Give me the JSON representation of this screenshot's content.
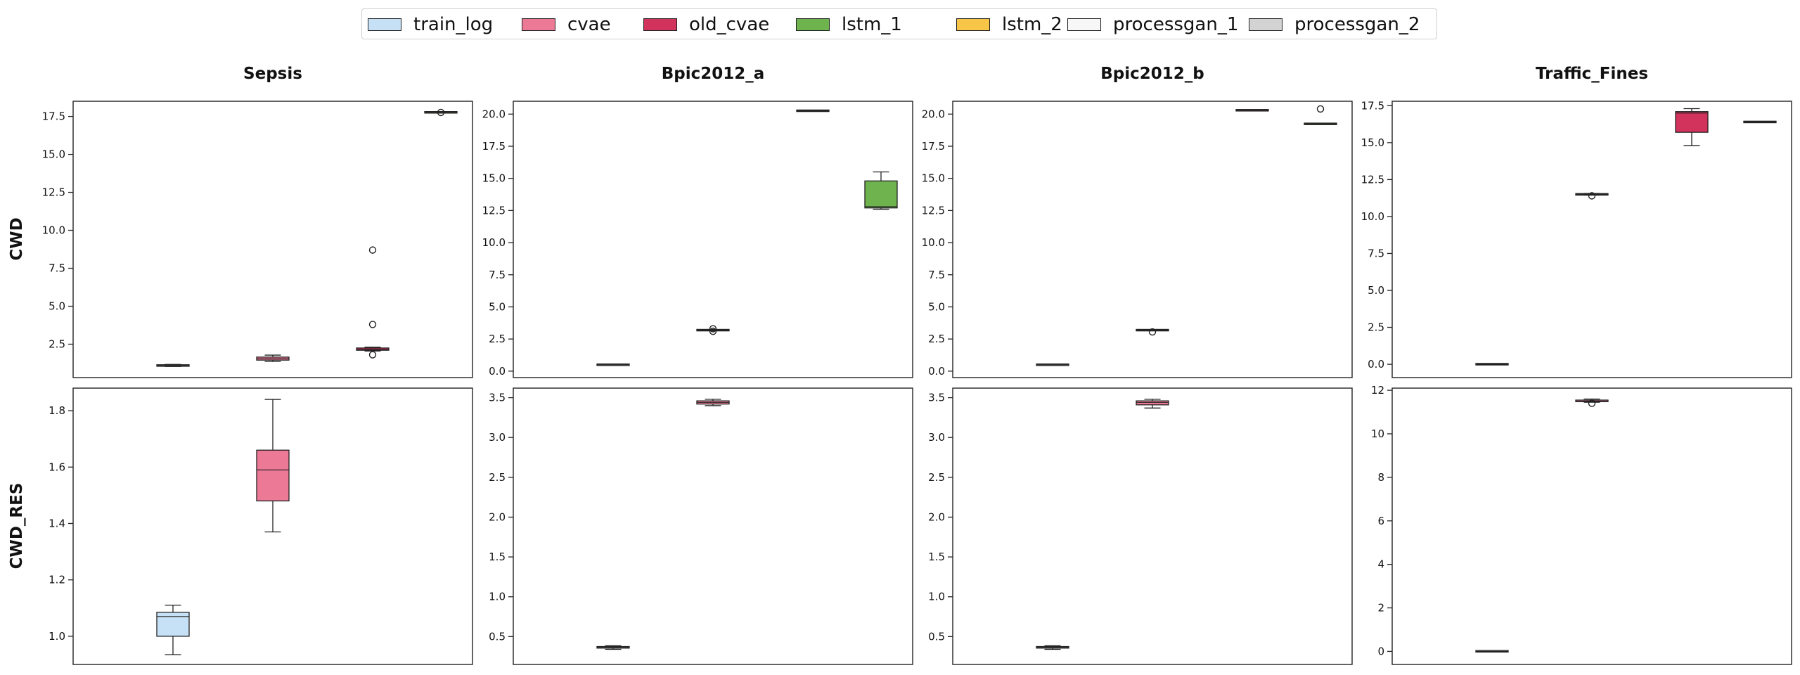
{
  "colors": {
    "train_log": "#c6e0f5",
    "cvae": "#ec7a96",
    "old_cvae": "#d2335c",
    "lstm_1": "#6fb34f",
    "lstm_2": "#f7c548",
    "processgan_1": "#f7f7f7",
    "processgan_2": "#d3d3d3"
  },
  "chart_data": {
    "type": "box",
    "legend": [
      "train_log",
      "cvae",
      "old_cvae",
      "lstm_1",
      "lstm_2",
      "processgan_1",
      "processgan_2"
    ],
    "legend_position": "top-center",
    "columns": [
      "Sepsis",
      "Bpic2012_a",
      "Bpic2012_b",
      "Traffic_Fines"
    ],
    "rows": [
      "CWD",
      "CWD_RES"
    ],
    "panels": [
      {
        "row": "CWD",
        "column": "Sepsis",
        "ylim": [
          0.3,
          18.5
        ],
        "yticks": [
          2.5,
          5.0,
          7.5,
          10.0,
          12.5,
          15.0,
          17.5
        ],
        "ytick_labels": [
          "2.5",
          "5.0",
          "7.5",
          "10.0",
          "12.5",
          "15.0",
          "17.5"
        ],
        "boxes": [
          {
            "series": "train_log",
            "pos": 1,
            "min": 1.03,
            "q1": 1.06,
            "median": 1.09,
            "q3": 1.13,
            "max": 1.17,
            "outliers": []
          },
          {
            "series": "cvae",
            "pos": 2,
            "min": 1.36,
            "q1": 1.45,
            "median": 1.55,
            "q3": 1.65,
            "max": 1.78,
            "outliers": []
          },
          {
            "series": "old_cvae",
            "pos": 3,
            "min": 2.05,
            "q1": 2.1,
            "median": 2.15,
            "q3": 2.25,
            "max": 2.3,
            "outliers": [
              8.7,
              3.8,
              1.8
            ]
          },
          {
            "series": "lstm_1",
            "pos": 4,
            "min": 17.75,
            "q1": 17.76,
            "median": 17.77,
            "q3": 17.78,
            "max": 17.79,
            "outliers": [
              17.76
            ]
          }
        ]
      },
      {
        "row": "CWD",
        "column": "Bpic2012_a",
        "ylim": [
          -0.5,
          21.0
        ],
        "yticks": [
          0.0,
          2.5,
          5.0,
          7.5,
          10.0,
          12.5,
          15.0,
          17.5,
          20.0
        ],
        "ytick_labels": [
          "0.0",
          "2.5",
          "5.0",
          "7.5",
          "10.0",
          "12.5",
          "15.0",
          "17.5",
          "20.0"
        ],
        "boxes": [
          {
            "series": "train_log",
            "pos": 1,
            "min": 0.48,
            "q1": 0.49,
            "median": 0.5,
            "q3": 0.51,
            "max": 0.52,
            "outliers": []
          },
          {
            "series": "cvae",
            "pos": 2,
            "min": 3.15,
            "q1": 3.17,
            "median": 3.19,
            "q3": 3.21,
            "max": 3.23,
            "outliers": [
              3.3,
              3.1
            ]
          },
          {
            "series": "old_cvae",
            "pos": 3,
            "min": 20.24,
            "q1": 20.25,
            "median": 20.26,
            "q3": 20.27,
            "max": 20.28,
            "outliers": []
          },
          {
            "series": "lstm_1",
            "pos": 4,
            "min": 12.6,
            "q1": 12.7,
            "median": 12.8,
            "q3": 14.8,
            "max": 15.5,
            "outliers": []
          }
        ]
      },
      {
        "row": "CWD",
        "column": "Bpic2012_b",
        "ylim": [
          -0.5,
          21.0
        ],
        "yticks": [
          0.0,
          2.5,
          5.0,
          7.5,
          10.0,
          12.5,
          15.0,
          17.5,
          20.0
        ],
        "ytick_labels": [
          "0.0",
          "2.5",
          "5.0",
          "7.5",
          "10.0",
          "12.5",
          "15.0",
          "17.5",
          "20.0"
        ],
        "boxes": [
          {
            "series": "train_log",
            "pos": 1,
            "min": 0.48,
            "q1": 0.49,
            "median": 0.5,
            "q3": 0.51,
            "max": 0.52,
            "outliers": []
          },
          {
            "series": "cvae",
            "pos": 2,
            "min": 3.15,
            "q1": 3.17,
            "median": 3.19,
            "q3": 3.21,
            "max": 3.23,
            "outliers": [
              3.05
            ]
          },
          {
            "series": "old_cvae",
            "pos": 3,
            "min": 20.28,
            "q1": 20.29,
            "median": 20.3,
            "q3": 20.31,
            "max": 20.32,
            "outliers": []
          },
          {
            "series": "lstm_1",
            "pos": 4,
            "min": 19.2,
            "q1": 19.22,
            "median": 19.24,
            "q3": 19.26,
            "max": 19.28,
            "outliers": [
              20.4
            ]
          }
        ]
      },
      {
        "row": "CWD",
        "column": "Traffic_Fines",
        "ylim": [
          -0.9,
          17.8
        ],
        "yticks": [
          0.0,
          2.5,
          5.0,
          7.5,
          10.0,
          12.5,
          15.0,
          17.5
        ],
        "ytick_labels": [
          "0.0",
          "2.5",
          "5.0",
          "7.5",
          "10.0",
          "12.5",
          "15.0",
          "17.5"
        ],
        "boxes": [
          {
            "series": "train_log",
            "pos": 1,
            "min": 0.0,
            "q1": 0.0,
            "median": 0.0,
            "q3": 0.01,
            "max": 0.01,
            "outliers": []
          },
          {
            "series": "cvae",
            "pos": 2,
            "min": 11.45,
            "q1": 11.48,
            "median": 11.5,
            "q3": 11.52,
            "max": 11.56,
            "outliers": [
              11.4
            ]
          },
          {
            "series": "old_cvae",
            "pos": 3,
            "min": 14.8,
            "q1": 15.7,
            "median": 17.0,
            "q3": 17.1,
            "max": 17.3,
            "outliers": []
          },
          {
            "series": "lstm_1",
            "pos": 4,
            "min": 16.38,
            "q1": 16.39,
            "median": 16.4,
            "q3": 16.41,
            "max": 16.42,
            "outliers": []
          }
        ]
      },
      {
        "row": "CWD_RES",
        "column": "Sepsis",
        "ylim": [
          0.9,
          1.88
        ],
        "yticks": [
          1.0,
          1.2,
          1.4,
          1.6,
          1.8
        ],
        "ytick_labels": [
          "1.0",
          "1.2",
          "1.4",
          "1.6",
          "1.8"
        ],
        "boxes": [
          {
            "series": "train_log",
            "pos": 1,
            "min": 0.935,
            "q1": 1.0,
            "median": 1.07,
            "q3": 1.085,
            "max": 1.11,
            "outliers": []
          },
          {
            "series": "cvae",
            "pos": 2,
            "min": 1.37,
            "q1": 1.48,
            "median": 1.59,
            "q3": 1.66,
            "max": 1.84,
            "outliers": []
          }
        ]
      },
      {
        "row": "CWD_RES",
        "column": "Bpic2012_a",
        "ylim": [
          0.15,
          3.62
        ],
        "yticks": [
          0.5,
          1.0,
          1.5,
          2.0,
          2.5,
          3.0,
          3.5
        ],
        "ytick_labels": [
          "0.5",
          "1.0",
          "1.5",
          "2.0",
          "2.5",
          "3.0",
          "3.5"
        ],
        "boxes": [
          {
            "series": "train_log",
            "pos": 1,
            "min": 0.34,
            "q1": 0.355,
            "median": 0.365,
            "q3": 0.375,
            "max": 0.385,
            "outliers": []
          },
          {
            "series": "cvae",
            "pos": 2,
            "min": 3.4,
            "q1": 3.42,
            "median": 3.44,
            "q3": 3.46,
            "max": 3.48,
            "outliers": []
          }
        ]
      },
      {
        "row": "CWD_RES",
        "column": "Bpic2012_b",
        "ylim": [
          0.15,
          3.62
        ],
        "yticks": [
          0.5,
          1.0,
          1.5,
          2.0,
          2.5,
          3.0,
          3.5
        ],
        "ytick_labels": [
          "0.5",
          "1.0",
          "1.5",
          "2.0",
          "2.5",
          "3.0",
          "3.5"
        ],
        "boxes": [
          {
            "series": "train_log",
            "pos": 1,
            "min": 0.34,
            "q1": 0.355,
            "median": 0.365,
            "q3": 0.375,
            "max": 0.385,
            "outliers": []
          },
          {
            "series": "cvae",
            "pos": 2,
            "min": 3.37,
            "q1": 3.41,
            "median": 3.44,
            "q3": 3.46,
            "max": 3.48,
            "outliers": []
          }
        ]
      },
      {
        "row": "CWD_RES",
        "column": "Traffic_Fines",
        "ylim": [
          -0.6,
          12.1
        ],
        "yticks": [
          0,
          2,
          4,
          6,
          8,
          10,
          12
        ],
        "ytick_labels": [
          "0",
          "2",
          "4",
          "6",
          "8",
          "10",
          "12"
        ],
        "boxes": [
          {
            "series": "train_log",
            "pos": 1,
            "min": 0.0,
            "q1": 0.0,
            "median": 0.0,
            "q3": 0.01,
            "max": 0.01,
            "outliers": []
          },
          {
            "series": "cvae",
            "pos": 2,
            "min": 11.45,
            "q1": 11.48,
            "median": 11.5,
            "q3": 11.55,
            "max": 11.6,
            "outliers": [
              11.4
            ]
          }
        ]
      }
    ]
  }
}
